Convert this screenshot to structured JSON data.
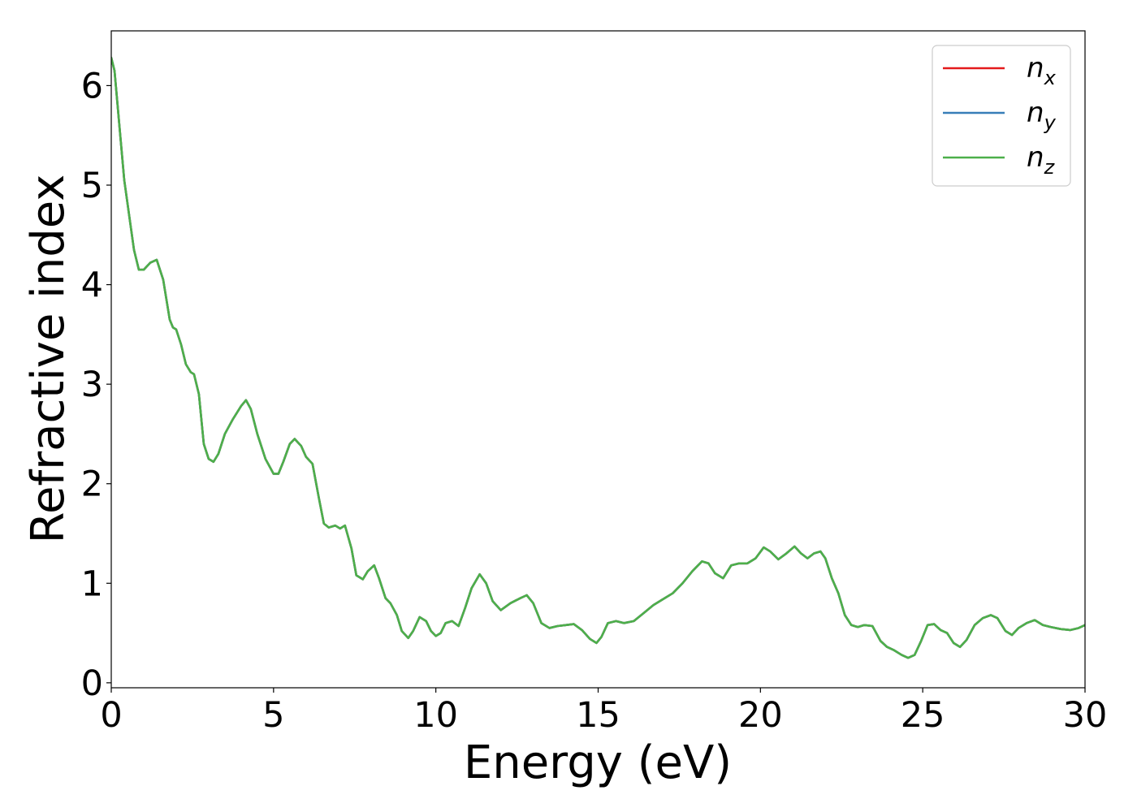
{
  "chart_data": {
    "type": "line",
    "title": "",
    "xlabel": "Energy (eV)",
    "ylabel": "Refractive index",
    "xlim": [
      0,
      30
    ],
    "ylim": [
      -0.05,
      6.55
    ],
    "xticks": [
      0,
      5,
      10,
      15,
      20,
      25,
      30
    ],
    "xtick_labels": [
      "0",
      "5",
      "10",
      "15",
      "20",
      "25",
      "30"
    ],
    "yticks": [
      0,
      1,
      2,
      3,
      4,
      5,
      6
    ],
    "ytick_labels": [
      "0",
      "1",
      "2",
      "3",
      "4",
      "5",
      "6"
    ],
    "grid": false,
    "legend_position": "top-right",
    "x": [
      0,
      0.1,
      0.25,
      0.4,
      0.55,
      0.7,
      0.85,
      1.0,
      1.2,
      1.4,
      1.6,
      1.8,
      1.9,
      2.0,
      2.15,
      2.3,
      2.45,
      2.55,
      2.7,
      2.85,
      3.0,
      3.15,
      3.3,
      3.5,
      3.75,
      4.0,
      4.15,
      4.3,
      4.5,
      4.75,
      5.0,
      5.15,
      5.3,
      5.5,
      5.65,
      5.85,
      6.0,
      6.2,
      6.4,
      6.55,
      6.7,
      6.9,
      7.05,
      7.2,
      7.4,
      7.55,
      7.75,
      7.9,
      8.1,
      8.25,
      8.45,
      8.6,
      8.8,
      8.95,
      9.15,
      9.3,
      9.5,
      9.7,
      9.85,
      10.0,
      10.15,
      10.3,
      10.5,
      10.7,
      10.9,
      11.1,
      11.35,
      11.55,
      11.75,
      12.0,
      12.3,
      12.6,
      12.8,
      13.0,
      13.25,
      13.5,
      13.75,
      14.0,
      14.25,
      14.5,
      14.75,
      14.95,
      15.1,
      15.3,
      15.55,
      15.8,
      16.1,
      16.4,
      16.7,
      17.0,
      17.3,
      17.6,
      17.9,
      18.2,
      18.4,
      18.6,
      18.85,
      19.1,
      19.35,
      19.6,
      19.85,
      20.1,
      20.3,
      20.55,
      20.8,
      21.05,
      21.25,
      21.45,
      21.65,
      21.85,
      22.0,
      22.2,
      22.4,
      22.6,
      22.8,
      23.0,
      23.2,
      23.45,
      23.7,
      23.9,
      24.1,
      24.35,
      24.55,
      24.75,
      24.95,
      25.15,
      25.35,
      25.55,
      25.75,
      25.95,
      26.15,
      26.35,
      26.6,
      26.85,
      27.1,
      27.3,
      27.55,
      27.75,
      27.95,
      28.2,
      28.45,
      28.7,
      28.95,
      29.25,
      29.55,
      29.8,
      30.0
    ],
    "series": [
      {
        "name": "n_x",
        "legend": {
          "base": "n",
          "sub": "x"
        },
        "color": "#e41a1c",
        "y": [
          6.28,
          6.15,
          5.6,
          5.05,
          4.7,
          4.35,
          4.15,
          4.15,
          4.22,
          4.25,
          4.05,
          3.65,
          3.57,
          3.55,
          3.4,
          3.2,
          3.12,
          3.1,
          2.9,
          2.4,
          2.25,
          2.22,
          2.3,
          2.5,
          2.65,
          2.78,
          2.84,
          2.75,
          2.5,
          2.25,
          2.1,
          2.1,
          2.22,
          2.4,
          2.45,
          2.38,
          2.27,
          2.2,
          1.85,
          1.6,
          1.56,
          1.58,
          1.55,
          1.58,
          1.35,
          1.08,
          1.04,
          1.12,
          1.18,
          1.05,
          0.85,
          0.8,
          0.68,
          0.52,
          0.45,
          0.52,
          0.66,
          0.62,
          0.52,
          0.47,
          0.5,
          0.6,
          0.62,
          0.57,
          0.75,
          0.95,
          1.09,
          1.0,
          0.82,
          0.73,
          0.8,
          0.85,
          0.88,
          0.8,
          0.6,
          0.55,
          0.57,
          0.58,
          0.59,
          0.53,
          0.44,
          0.4,
          0.46,
          0.6,
          0.62,
          0.6,
          0.62,
          0.7,
          0.78,
          0.84,
          0.9,
          1.0,
          1.12,
          1.22,
          1.2,
          1.1,
          1.05,
          1.18,
          1.2,
          1.2,
          1.25,
          1.36,
          1.32,
          1.24,
          1.3,
          1.37,
          1.3,
          1.25,
          1.3,
          1.32,
          1.25,
          1.05,
          0.9,
          0.68,
          0.58,
          0.56,
          0.58,
          0.57,
          0.42,
          0.36,
          0.33,
          0.28,
          0.25,
          0.28,
          0.42,
          0.58,
          0.59,
          0.53,
          0.5,
          0.4,
          0.36,
          0.43,
          0.58,
          0.65,
          0.68,
          0.65,
          0.52,
          0.48,
          0.55,
          0.6,
          0.63,
          0.58,
          0.56,
          0.54,
          0.53,
          0.55,
          0.58
        ]
      },
      {
        "name": "n_y",
        "legend": {
          "base": "n",
          "sub": "y"
        },
        "color": "#377eb8",
        "y": [
          6.28,
          6.15,
          5.6,
          5.05,
          4.7,
          4.35,
          4.15,
          4.15,
          4.22,
          4.25,
          4.05,
          3.65,
          3.57,
          3.55,
          3.4,
          3.2,
          3.12,
          3.1,
          2.9,
          2.4,
          2.25,
          2.22,
          2.3,
          2.5,
          2.65,
          2.78,
          2.84,
          2.75,
          2.5,
          2.25,
          2.1,
          2.1,
          2.22,
          2.4,
          2.45,
          2.38,
          2.27,
          2.2,
          1.85,
          1.6,
          1.56,
          1.58,
          1.55,
          1.58,
          1.35,
          1.08,
          1.04,
          1.12,
          1.18,
          1.05,
          0.85,
          0.8,
          0.68,
          0.52,
          0.45,
          0.52,
          0.66,
          0.62,
          0.52,
          0.47,
          0.5,
          0.6,
          0.62,
          0.57,
          0.75,
          0.95,
          1.09,
          1.0,
          0.82,
          0.73,
          0.8,
          0.85,
          0.88,
          0.8,
          0.6,
          0.55,
          0.57,
          0.58,
          0.59,
          0.53,
          0.44,
          0.4,
          0.46,
          0.6,
          0.62,
          0.6,
          0.62,
          0.7,
          0.78,
          0.84,
          0.9,
          1.0,
          1.12,
          1.22,
          1.2,
          1.1,
          1.05,
          1.18,
          1.2,
          1.2,
          1.25,
          1.36,
          1.32,
          1.24,
          1.3,
          1.37,
          1.3,
          1.25,
          1.3,
          1.32,
          1.25,
          1.05,
          0.9,
          0.68,
          0.58,
          0.56,
          0.58,
          0.57,
          0.42,
          0.36,
          0.33,
          0.28,
          0.25,
          0.28,
          0.42,
          0.58,
          0.59,
          0.53,
          0.5,
          0.4,
          0.36,
          0.43,
          0.58,
          0.65,
          0.68,
          0.65,
          0.52,
          0.48,
          0.55,
          0.6,
          0.63,
          0.58,
          0.56,
          0.54,
          0.53,
          0.55,
          0.58
        ]
      },
      {
        "name": "n_z",
        "legend": {
          "base": "n",
          "sub": "z"
        },
        "color": "#4daf4a",
        "y": [
          6.28,
          6.15,
          5.6,
          5.05,
          4.7,
          4.35,
          4.15,
          4.15,
          4.22,
          4.25,
          4.05,
          3.65,
          3.57,
          3.55,
          3.4,
          3.2,
          3.12,
          3.1,
          2.9,
          2.4,
          2.25,
          2.22,
          2.3,
          2.5,
          2.65,
          2.78,
          2.84,
          2.75,
          2.5,
          2.25,
          2.1,
          2.1,
          2.22,
          2.4,
          2.45,
          2.38,
          2.27,
          2.2,
          1.85,
          1.6,
          1.56,
          1.58,
          1.55,
          1.58,
          1.35,
          1.08,
          1.04,
          1.12,
          1.18,
          1.05,
          0.85,
          0.8,
          0.68,
          0.52,
          0.45,
          0.52,
          0.66,
          0.62,
          0.52,
          0.47,
          0.5,
          0.6,
          0.62,
          0.57,
          0.75,
          0.95,
          1.09,
          1.0,
          0.82,
          0.73,
          0.8,
          0.85,
          0.88,
          0.8,
          0.6,
          0.55,
          0.57,
          0.58,
          0.59,
          0.53,
          0.44,
          0.4,
          0.46,
          0.6,
          0.62,
          0.6,
          0.62,
          0.7,
          0.78,
          0.84,
          0.9,
          1.0,
          1.12,
          1.22,
          1.2,
          1.1,
          1.05,
          1.18,
          1.2,
          1.2,
          1.25,
          1.36,
          1.32,
          1.24,
          1.3,
          1.37,
          1.3,
          1.25,
          1.3,
          1.32,
          1.25,
          1.05,
          0.9,
          0.68,
          0.58,
          0.56,
          0.58,
          0.57,
          0.42,
          0.36,
          0.33,
          0.28,
          0.25,
          0.28,
          0.42,
          0.58,
          0.59,
          0.53,
          0.5,
          0.4,
          0.36,
          0.43,
          0.58,
          0.65,
          0.68,
          0.65,
          0.52,
          0.48,
          0.55,
          0.6,
          0.63,
          0.58,
          0.56,
          0.54,
          0.53,
          0.55,
          0.58
        ]
      }
    ]
  }
}
